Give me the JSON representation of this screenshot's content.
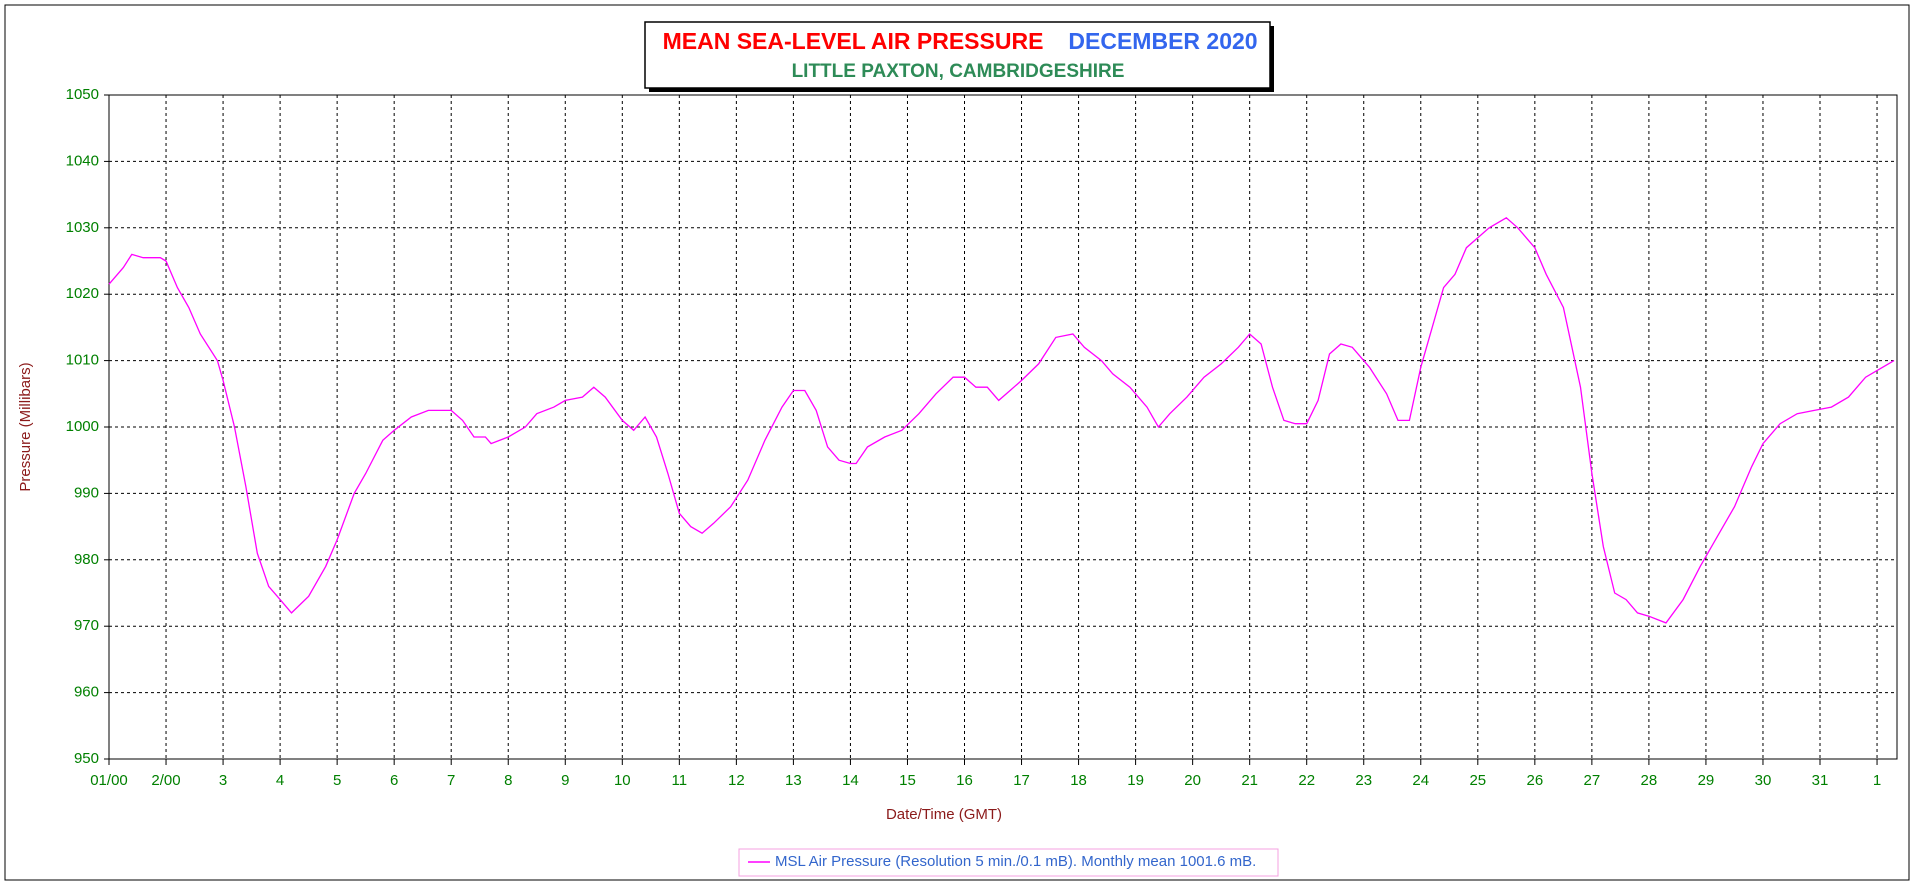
{
  "chart_data": {
    "type": "line",
    "title": "MEAN SEA-LEVEL AIR PRESSURE",
    "title_period": "DECEMBER 2020",
    "subtitle": "LITTLE PAXTON, CAMBRIDGESHIRE",
    "x_label": "Date/Time (GMT)",
    "y_label": "Pressure (Millibars)",
    "x": [
      0,
      0.25,
      0.4,
      0.6,
      0.9,
      1.0,
      1.2,
      1.4,
      1.6,
      1.9,
      2.0,
      2.2,
      2.4,
      2.6,
      2.8,
      3.0,
      3.2,
      3.5,
      3.8,
      4.0,
      4.3,
      4.5,
      4.8,
      5.0,
      5.3,
      5.6,
      6.0,
      6.2,
      6.4,
      6.6,
      6.7,
      7.0,
      7.3,
      7.5,
      7.8,
      8.0,
      8.3,
      8.5,
      8.7,
      9.0,
      9.2,
      9.4,
      9.6,
      9.8,
      10.0,
      10.2,
      10.4,
      10.6,
      10.9,
      11.2,
      11.5,
      11.8,
      12.0,
      12.2,
      12.4,
      12.6,
      12.8,
      13.0,
      13.1,
      13.3,
      13.6,
      13.9,
      14.2,
      14.5,
      14.8,
      15.0,
      15.2,
      15.4,
      15.6,
      15.8,
      16.0,
      16.3,
      16.6,
      16.9,
      17.1,
      17.4,
      17.6,
      17.9,
      18.2,
      18.4,
      18.6,
      18.9,
      19.2,
      19.5,
      19.8,
      20.0,
      20.2,
      20.4,
      20.6,
      20.8,
      21.0,
      21.2,
      21.4,
      21.6,
      21.8,
      22.1,
      22.4,
      22.6,
      22.8,
      23.0,
      23.2,
      23.4,
      23.6,
      23.8,
      24.0,
      24.2,
      24.5,
      24.7,
      25.0,
      25.2,
      25.5,
      25.8,
      26.0,
      26.2,
      26.4,
      26.6,
      26.8,
      27.0,
      27.3,
      27.6,
      27.9,
      28.2,
      28.5,
      28.8,
      29.0,
      29.3,
      29.6,
      29.9,
      30.2,
      30.5,
      30.8,
      31.0,
      31.3
    ],
    "series": [
      {
        "name": "MSL Air Pressure (Resolution 5 min./0.1 mB). Monthly mean 1001.6 mB.",
        "color": "#ff00ff",
        "values": [
          1021.5,
          1024,
          1026,
          1025.5,
          1025.5,
          1025,
          1021,
          1018,
          1014,
          1010,
          1007,
          1000,
          991,
          981,
          976,
          974,
          972,
          974.5,
          979,
          983,
          990,
          993,
          998,
          999.5,
          1001.5,
          1002.5,
          1002.5,
          1001,
          998.5,
          998.5,
          997.5,
          998.5,
          1000,
          1002,
          1003,
          1004,
          1004.5,
          1006,
          1004.5,
          1001,
          999.5,
          1001.5,
          998.5,
          993,
          987,
          985,
          984,
          985.5,
          988,
          992,
          998,
          1003,
          1005.5,
          1005.5,
          1002.5,
          997,
          995,
          994.5,
          994.5,
          997,
          998.5,
          999.5,
          1002,
          1005,
          1007.5,
          1007.5,
          1006,
          1006,
          1004,
          1005.5,
          1007,
          1009.5,
          1013.5,
          1014,
          1012,
          1010,
          1008,
          1006,
          1003,
          1000,
          1002,
          1004.5,
          1007.5,
          1009.5,
          1012,
          1014,
          1012.5,
          1006,
          1001,
          1000.5,
          1000.5,
          1004,
          1011,
          1012.5,
          1012,
          1009,
          1005,
          1001,
          1001,
          1009,
          1015,
          1021,
          1023,
          1027,
          1028.5,
          1030,
          1031.5,
          1030,
          1027,
          1023,
          1018,
          1006,
          993,
          982,
          975,
          974,
          972,
          971.5,
          970.5,
          974,
          979,
          983.5,
          988,
          994,
          997.5,
          1000.5,
          1002,
          1002.5,
          1003,
          1004.5,
          1007.5,
          1008.5,
          1010
        ]
      }
    ],
    "xlim": [
      0,
      31.35
    ],
    "xticks": [
      {
        "value": 0,
        "label": "01/00"
      },
      {
        "value": 1,
        "label": "2/00"
      },
      {
        "value": 2,
        "label": "3"
      },
      {
        "value": 3,
        "label": "4"
      },
      {
        "value": 4,
        "label": "5"
      },
      {
        "value": 5,
        "label": "6"
      },
      {
        "value": 6,
        "label": "7"
      },
      {
        "value": 7,
        "label": "8"
      },
      {
        "value": 8,
        "label": "9"
      },
      {
        "value": 9,
        "label": "10"
      },
      {
        "value": 10,
        "label": "11"
      },
      {
        "value": 11,
        "label": "12"
      },
      {
        "value": 12,
        "label": "13"
      },
      {
        "value": 13,
        "label": "14"
      },
      {
        "value": 14,
        "label": "15"
      },
      {
        "value": 15,
        "label": "16"
      },
      {
        "value": 16,
        "label": "17"
      },
      {
        "value": 17,
        "label": "18"
      },
      {
        "value": 18,
        "label": "19"
      },
      {
        "value": 19,
        "label": "20"
      },
      {
        "value": 20,
        "label": "21"
      },
      {
        "value": 21,
        "label": "22"
      },
      {
        "value": 22,
        "label": "23"
      },
      {
        "value": 23,
        "label": "24"
      },
      {
        "value": 24,
        "label": "25"
      },
      {
        "value": 25,
        "label": "26"
      },
      {
        "value": 26,
        "label": "27"
      },
      {
        "value": 27,
        "label": "28"
      },
      {
        "value": 28,
        "label": "29"
      },
      {
        "value": 29,
        "label": "30"
      },
      {
        "value": 30,
        "label": "31"
      },
      {
        "value": 31,
        "label": "1"
      }
    ],
    "ylim": [
      950,
      1050
    ],
    "yticks": [
      950,
      960,
      970,
      980,
      990,
      1000,
      1010,
      1020,
      1030,
      1040,
      1050
    ],
    "grid": true
  }
}
